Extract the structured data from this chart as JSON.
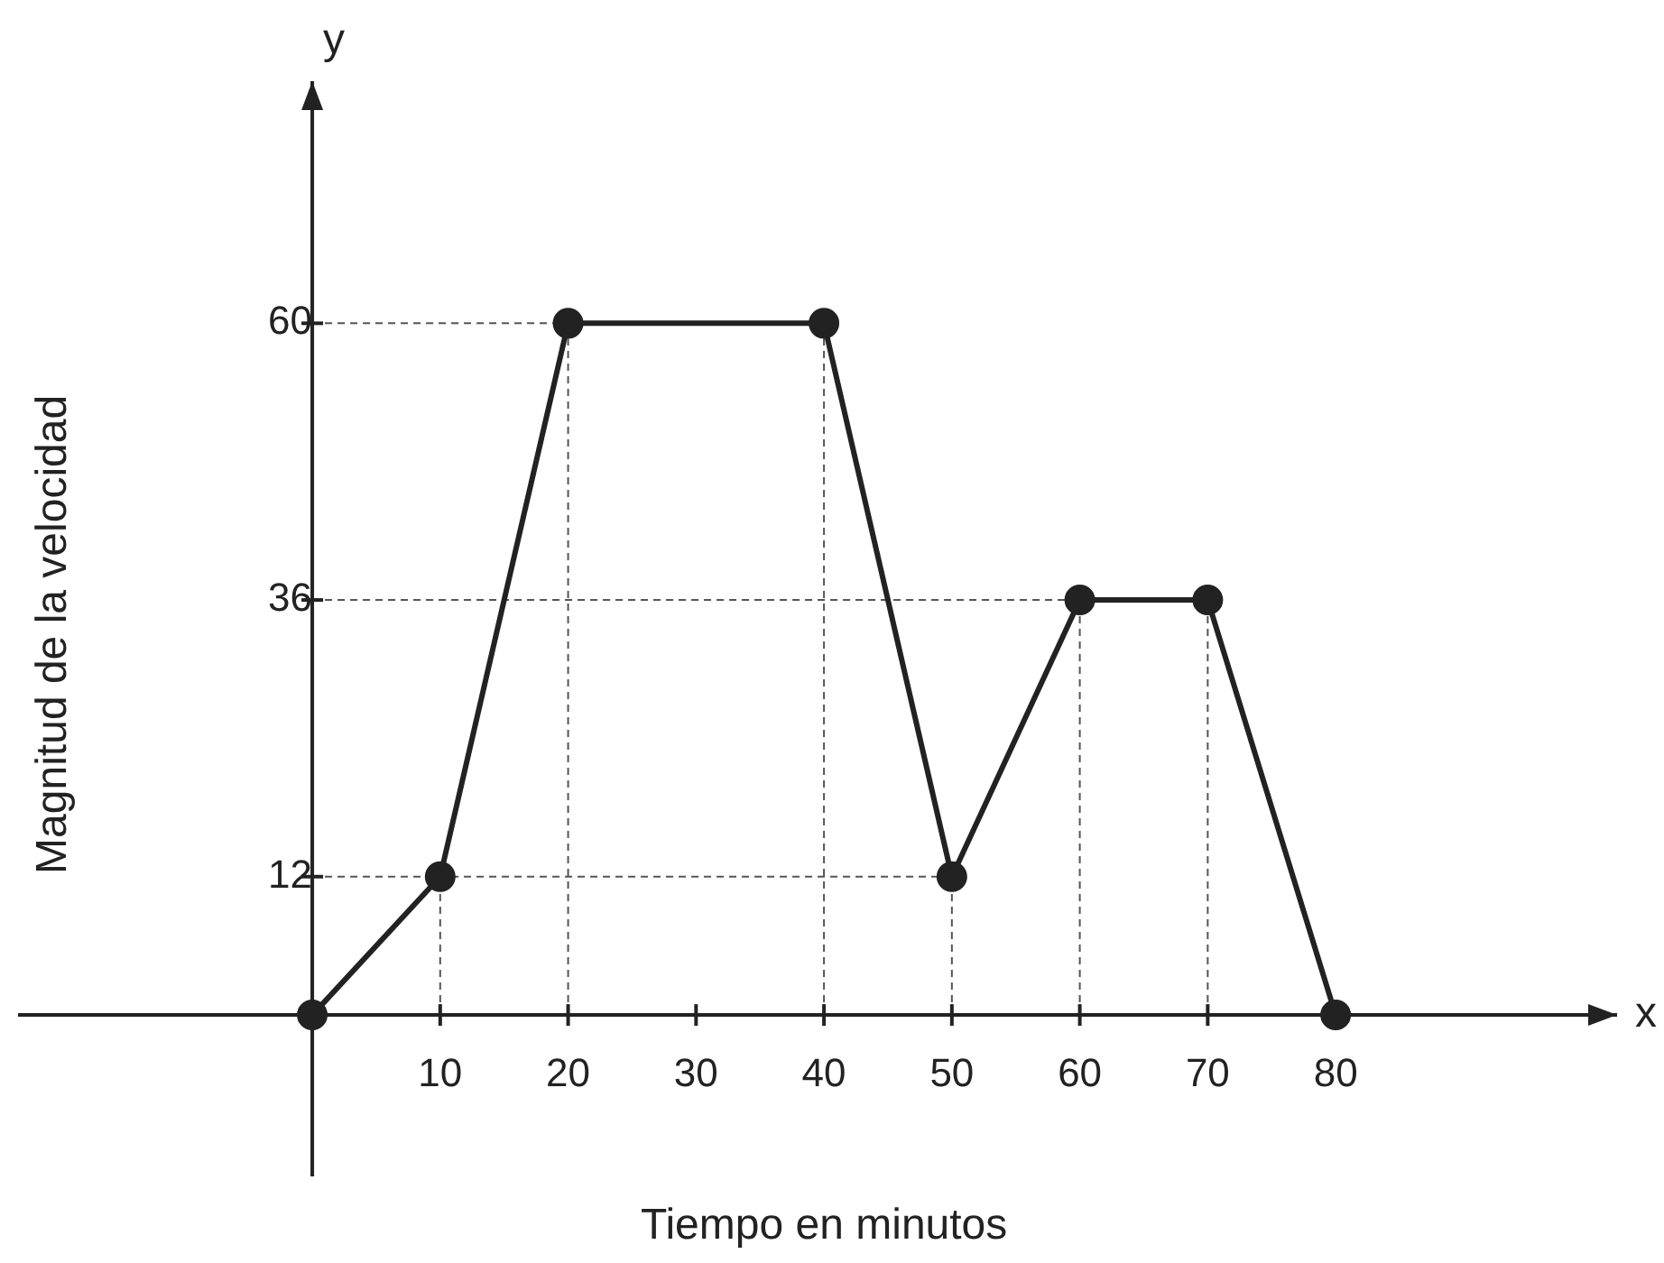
{
  "chart_data": {
    "type": "line",
    "xlabel": "Tiempo en minutos",
    "ylabel": "Magnitud de la velocidad",
    "annotations": [
      "y",
      "x"
    ],
    "x": [
      0,
      10,
      20,
      40,
      50,
      60,
      70,
      80
    ],
    "series": [
      {
        "color": "#222222",
        "values": [
          0,
          12,
          60,
          60,
          12,
          36,
          36,
          0
        ]
      }
    ],
    "xlim": [
      -23,
      102
    ],
    "ylim": [
      -14,
      81
    ],
    "xticks": [
      10,
      20,
      30,
      40,
      50,
      60,
      70,
      80
    ],
    "yticks": [
      12,
      36,
      60
    ],
    "ref_lines": [
      {
        "axis": "y",
        "value": 12,
        "color": "#555555",
        "line_style": "dashed"
      },
      {
        "axis": "y",
        "value": 36,
        "color": "#555555",
        "line_style": "dashed"
      },
      {
        "axis": "y",
        "value": 60,
        "color": "#555555",
        "line_style": "dashed"
      },
      {
        "axis": "x",
        "value": 10,
        "color": "#555555",
        "line_style": "dashed"
      },
      {
        "axis": "x",
        "value": 20,
        "color": "#555555",
        "line_style": "dashed"
      },
      {
        "axis": "x",
        "value": 40,
        "color": "#555555",
        "line_style": "dashed"
      },
      {
        "axis": "x",
        "value": 50,
        "color": "#555555",
        "line_style": "dashed"
      },
      {
        "axis": "x",
        "value": 60,
        "color": "#555555",
        "line_style": "dashed"
      },
      {
        "axis": "x",
        "value": 70,
        "color": "#555555",
        "line_style": "dashed"
      }
    ],
    "marker": "circle",
    "line_style": "solid",
    "legend": false
  }
}
